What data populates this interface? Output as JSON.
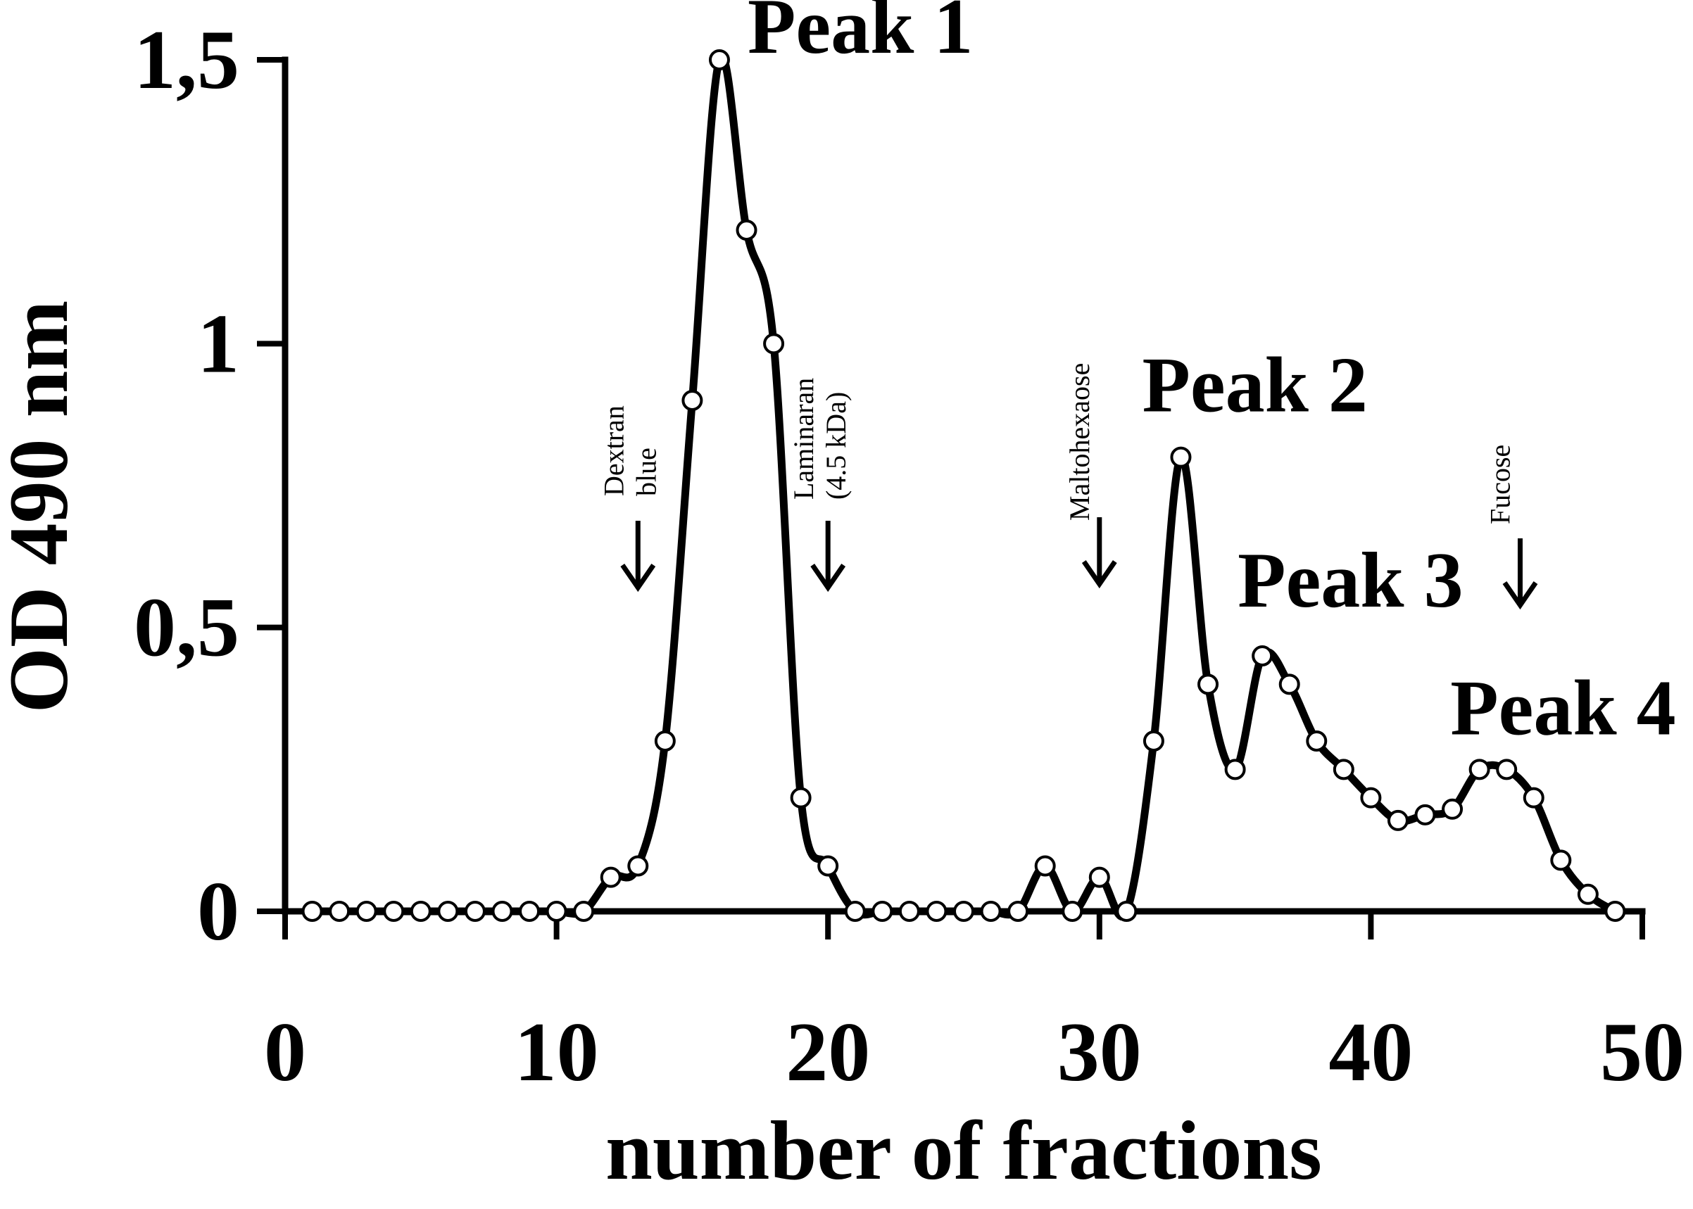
{
  "chart_data": {
    "type": "line",
    "xlabel": "number of fractions",
    "ylabel": "OD 490 nm",
    "xlim": [
      0,
      50
    ],
    "ylim": [
      0,
      1.5
    ],
    "xticks": [
      {
        "value": 0,
        "label": "0"
      },
      {
        "value": 10,
        "label": "10"
      },
      {
        "value": 20,
        "label": "20"
      },
      {
        "value": 30,
        "label": "30"
      },
      {
        "value": 40,
        "label": "40"
      },
      {
        "value": 50,
        "label": "50"
      }
    ],
    "yticks": [
      {
        "value": 0,
        "label": "0"
      },
      {
        "value": 0.5,
        "label": "0,5"
      },
      {
        "value": 1,
        "label": "1"
      },
      {
        "value": 1.5,
        "label": "1,5"
      }
    ],
    "grid": false,
    "series": [
      {
        "x": [
          1,
          2,
          3,
          4,
          5,
          6,
          7,
          8,
          9,
          10,
          11,
          12,
          13,
          14,
          15,
          16,
          17,
          18,
          19,
          20,
          21,
          22,
          23,
          24,
          25,
          26,
          27,
          28,
          29,
          30,
          31,
          32,
          33,
          34,
          35,
          36,
          37,
          38,
          39,
          40,
          41,
          42,
          43,
          44,
          45,
          46,
          47,
          48,
          49
        ],
        "y": [
          0,
          0,
          0,
          0,
          0,
          0,
          0,
          0,
          0,
          0,
          0,
          0.06,
          0.08,
          0.3,
          0.9,
          1.5,
          1.2,
          1.0,
          0.2,
          0.08,
          0,
          0,
          0,
          0,
          0,
          0,
          0,
          0.08,
          0,
          0.06,
          0,
          0.3,
          0.8,
          0.4,
          0.25,
          0.45,
          0.4,
          0.3,
          0.25,
          0.2,
          0.16,
          0.17,
          0.18,
          0.25,
          0.25,
          0.2,
          0.09,
          0.03,
          0
        ]
      }
    ],
    "peak_annotations": [
      {
        "label": "Peak 1",
        "x": 16,
        "y": 1.5
      },
      {
        "label": "Peak 2",
        "x": 33,
        "y": 0.8
      },
      {
        "label": "Peak 3",
        "x": 36,
        "y": 0.45
      },
      {
        "label": "Peak 4",
        "x": 45,
        "y": 0.25
      }
    ],
    "markers": [
      {
        "lines": [
          "Dextran",
          "blue"
        ],
        "x": 13
      },
      {
        "lines": [
          "Laminaran",
          "(4.5 kDa)"
        ],
        "x": 20
      },
      {
        "lines": [
          "Maltohexaose"
        ],
        "x": 30
      },
      {
        "lines": [
          "Fucose"
        ],
        "x": 45.5
      }
    ]
  }
}
